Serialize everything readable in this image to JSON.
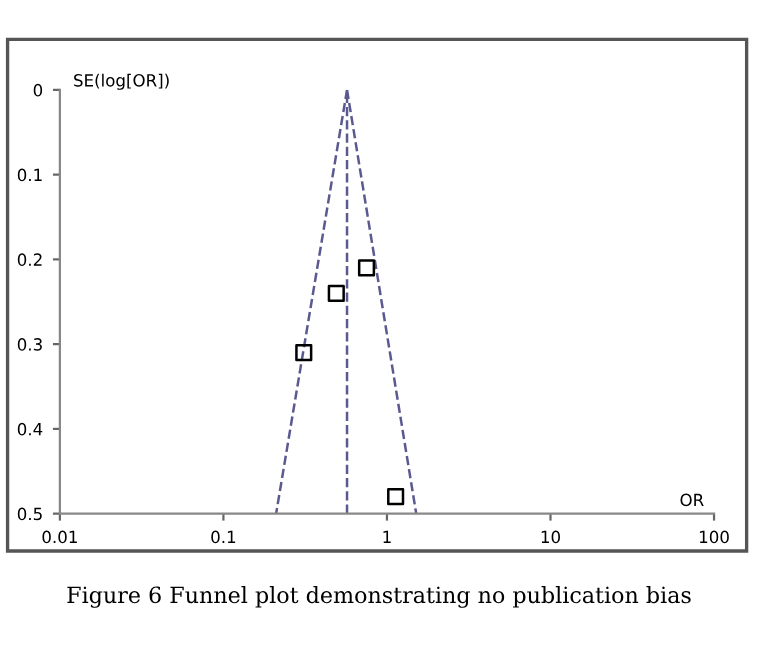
{
  "chart_data": {
    "type": "scatter",
    "xlabel": "OR",
    "ylabel": "SE(log[OR])",
    "annotations": [
      "Figure 6 Funnel plot demonstrating no publication bias"
    ],
    "log": "x",
    "grid": false,
    "legend": false,
    "xlim": [
      0.01,
      100
    ],
    "xticks": [
      0.01,
      0.1,
      1,
      10,
      100
    ],
    "ylim": [
      0.5,
      0
    ],
    "yticks": [
      0,
      0.1,
      0.2,
      0.3,
      0.4,
      0.5
    ],
    "ref_lines": [
      {
        "axis": "x",
        "value": 0.57,
        "color": "#5a5a90",
        "line_style": "dashed"
      }
    ],
    "series": [
      {
        "color": "#000000",
        "marker": "square",
        "x": [
          0.75,
          0.49,
          0.31,
          1.13
        ],
        "values": [
          0.21,
          0.24,
          0.31,
          0.48
        ]
      },
      {
        "type": "line",
        "color": "#5a5a90",
        "line_style": "dashed",
        "marker": "none",
        "x": [
          0.57,
          0.21
        ],
        "values": [
          0,
          0.5
        ]
      },
      {
        "type": "line",
        "color": "#5a5a90",
        "line_style": "dashed",
        "marker": "none",
        "x": [
          0.57,
          1.51
        ],
        "values": [
          0,
          0.5
        ]
      }
    ]
  }
}
